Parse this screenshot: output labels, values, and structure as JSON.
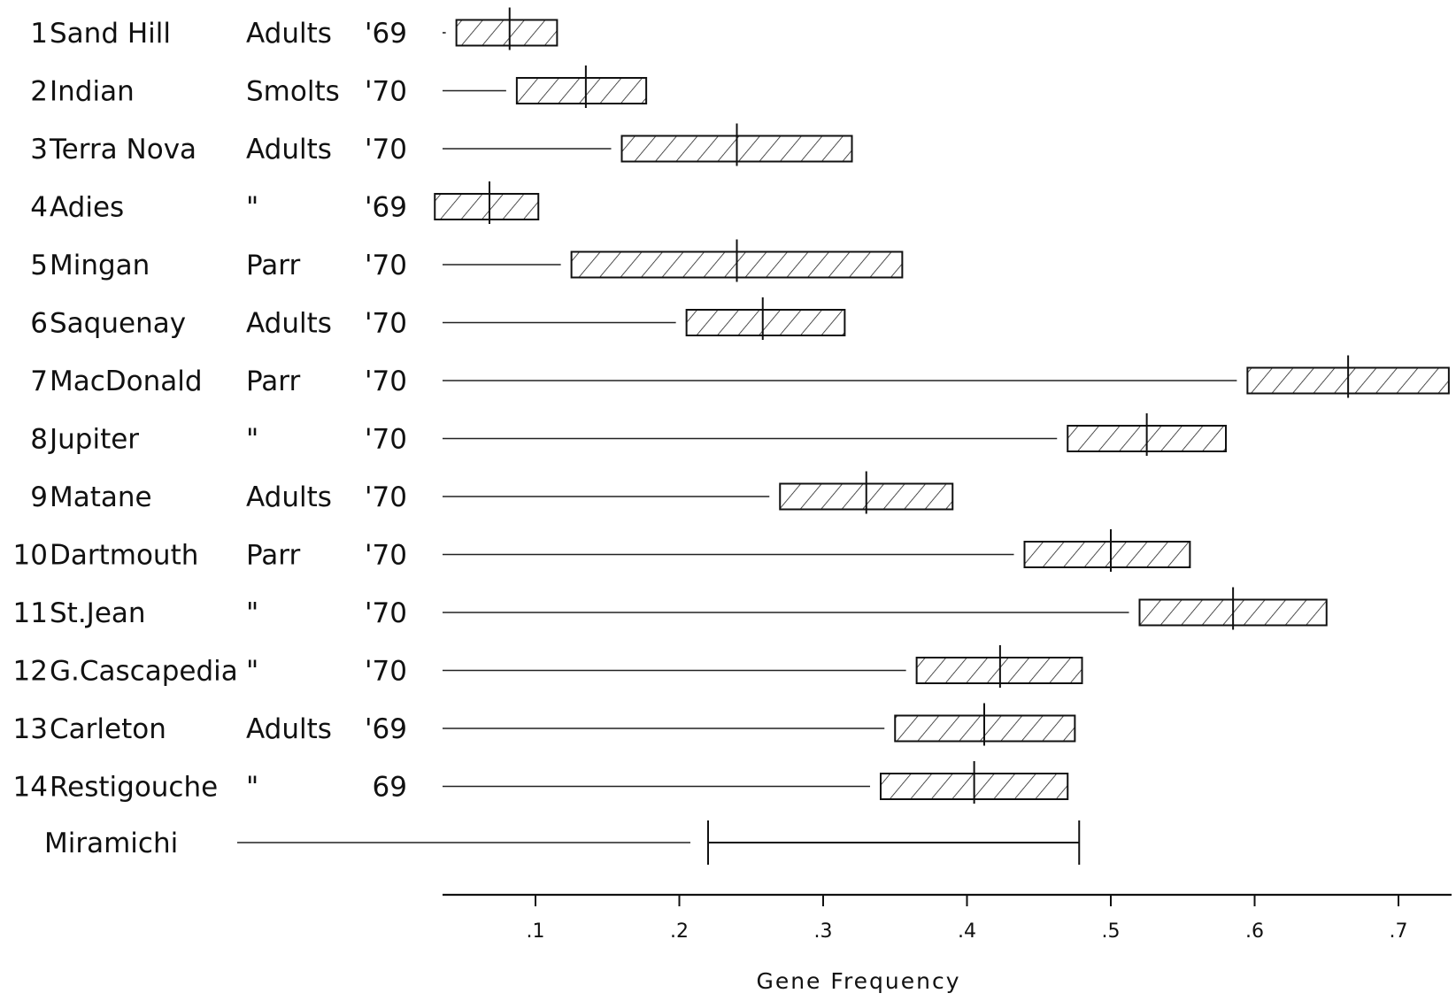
{
  "chart_data": {
    "type": "bar",
    "title": "",
    "xlabel": "Gene Frequency",
    "ylabel": "",
    "xlim": [
      0.03,
      0.73
    ],
    "grid": false,
    "x_ticks": [
      {
        "value": 0.1,
        "label": ".1"
      },
      {
        "value": 0.2,
        "label": ".2"
      },
      {
        "value": 0.3,
        "label": ".3"
      },
      {
        "value": 0.4,
        "label": ".4"
      },
      {
        "value": 0.5,
        "label": ".5"
      },
      {
        "value": 0.6,
        "label": ".6"
      },
      {
        "value": 0.7,
        "label": ".7"
      }
    ],
    "rows": [
      {
        "number": "1",
        "name": "Sand Hill",
        "stage": "Adults",
        "year": "'69",
        "low": 0.045,
        "high": 0.115,
        "mean": 0.082
      },
      {
        "number": "2",
        "name": "Indian",
        "stage": "Smolts",
        "year": "'70",
        "low": 0.087,
        "high": 0.177,
        "mean": 0.135
      },
      {
        "number": "3",
        "name": "Terra Nova",
        "stage": "Adults",
        "year": "'70",
        "low": 0.16,
        "high": 0.32,
        "mean": 0.24
      },
      {
        "number": "4",
        "name": "Adies",
        "stage": "\"",
        "year": "'69",
        "low": 0.03,
        "high": 0.102,
        "mean": 0.068
      },
      {
        "number": "5",
        "name": "Mingan",
        "stage": "Parr",
        "year": "'70",
        "low": 0.125,
        "high": 0.355,
        "mean": 0.24
      },
      {
        "number": "6",
        "name": "Saquenay",
        "stage": "Adults",
        "year": "'70",
        "low": 0.205,
        "high": 0.315,
        "mean": 0.258
      },
      {
        "number": "7",
        "name": "MacDonald",
        "stage": "Parr",
        "year": "'70",
        "low": 0.595,
        "high": 0.735,
        "mean": 0.665
      },
      {
        "number": "8",
        "name": "Jupiter",
        "stage": "\"",
        "year": "'70",
        "low": 0.47,
        "high": 0.58,
        "mean": 0.525
      },
      {
        "number": "9",
        "name": "Matane",
        "stage": "Adults",
        "year": "'70",
        "low": 0.27,
        "high": 0.39,
        "mean": 0.33
      },
      {
        "number": "10",
        "name": "Dartmouth",
        "stage": "Parr",
        "year": "'70",
        "low": 0.44,
        "high": 0.555,
        "mean": 0.5
      },
      {
        "number": "11",
        "name": "St.Jean",
        "stage": "\"",
        "year": "'70",
        "low": 0.52,
        "high": 0.65,
        "mean": 0.585
      },
      {
        "number": "12",
        "name": "G.Cascapedia",
        "stage": "\"",
        "year": "'70",
        "low": 0.365,
        "high": 0.48,
        "mean": 0.423
      },
      {
        "number": "13",
        "name": "Carleton",
        "stage": "Adults",
        "year": "'69",
        "low": 0.35,
        "high": 0.475,
        "mean": 0.412
      },
      {
        "number": "14",
        "name": "Restigouche",
        "stage": "\"",
        "year": "69",
        "low": 0.34,
        "high": 0.47,
        "mean": 0.405
      }
    ],
    "reference": {
      "name": "Miramichi",
      "low": 0.22,
      "high": 0.478
    }
  }
}
